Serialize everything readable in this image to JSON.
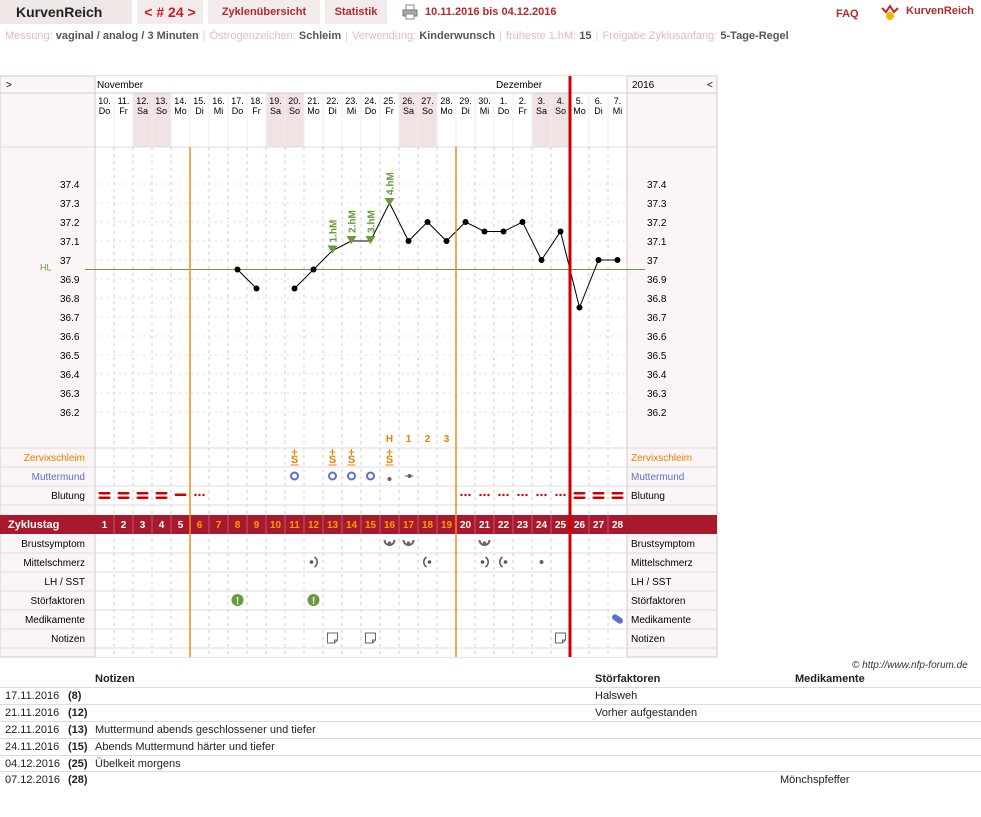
{
  "header": {
    "app_title": "KurvenReich",
    "cycle_nav": "< # 24 >",
    "overview_label": "Zyklenübersicht",
    "stats_label": "Statistik",
    "date_range": "10.11.2016 bis 04.12.2016",
    "faq_label": "FAQ",
    "logo_text": "KurvenReich"
  },
  "meta": [
    {
      "label": "Messung:",
      "value": "vaginal / analog / 3 Minuten"
    },
    {
      "label": "Östrogenzeichen:",
      "value": "Schleim"
    },
    {
      "label": "Verwendung:",
      "value": "Kinderwunsch"
    },
    {
      "label": "früheste 1.hM:",
      "value": "15"
    },
    {
      "label": "Freigabe Zyklusanfang:",
      "value": "5-Tage-Regel"
    }
  ],
  "chart_data": {
    "type": "line",
    "months": [
      {
        "name": "November",
        "start_index": 0
      },
      {
        "name": "Dezember",
        "start_index": 21
      }
    ],
    "year": "2016",
    "nav_left": ">",
    "nav_right": "<",
    "days": [
      "10.",
      "11.",
      "12.",
      "13.",
      "14.",
      "15.",
      "16.",
      "17.",
      "18.",
      "19.",
      "20.",
      "21.",
      "22.",
      "23.",
      "24.",
      "25.",
      "26.",
      "27.",
      "28.",
      "29.",
      "30.",
      "1.",
      "2.",
      "3.",
      "4.",
      "5.",
      "6.",
      "7."
    ],
    "weekdays": [
      "Do",
      "Fr",
      "Sa",
      "So",
      "Mo",
      "Di",
      "Mi",
      "Do",
      "Fr",
      "Sa",
      "So",
      "Mo",
      "Di",
      "Mi",
      "Do",
      "Fr",
      "Sa",
      "So",
      "Mo",
      "Di",
      "Mi",
      "Do",
      "Fr",
      "Sa",
      "So",
      "Mo",
      "Di",
      "Mi"
    ],
    "weekend": [
      false,
      false,
      true,
      true,
      false,
      false,
      false,
      false,
      false,
      true,
      true,
      false,
      false,
      false,
      false,
      false,
      true,
      true,
      false,
      false,
      false,
      false,
      false,
      true,
      true,
      false,
      false,
      false
    ],
    "cycle_days": [
      "1",
      "2",
      "3",
      "4",
      "5",
      "6",
      "7",
      "8",
      "9",
      "10",
      "11",
      "12",
      "13",
      "14",
      "15",
      "16",
      "17",
      "18",
      "19",
      "20",
      "21",
      "22",
      "23",
      "24",
      "25",
      "26",
      "27",
      "28"
    ],
    "cycle_day_status": [
      "bleed",
      "bleed",
      "bleed",
      "bleed",
      "bleed",
      "free",
      "free",
      "free",
      "free",
      "free",
      "free",
      "free",
      "free",
      "free",
      "free",
      "free",
      "free",
      "free",
      "free",
      "infertile",
      "infertile",
      "infertile",
      "infertile",
      "infertile",
      "infertile",
      "bleed",
      "bleed",
      "bleed"
    ],
    "ylabel_ticks": [
      "37.4",
      "37.3",
      "37.2",
      "37.1",
      "37",
      "36.9",
      "36.8",
      "36.7",
      "36.6",
      "36.5",
      "36.4",
      "36.3",
      "36.2"
    ],
    "ylim": [
      36.2,
      37.4
    ],
    "temperatures": [
      null,
      null,
      null,
      null,
      null,
      null,
      null,
      36.95,
      36.85,
      null,
      36.85,
      36.95,
      37.05,
      37.1,
      37.1,
      37.3,
      37.1,
      37.2,
      37.1,
      37.2,
      37.15,
      37.15,
      37.2,
      37.0,
      37.15,
      36.75,
      37.0,
      37.0
    ],
    "high_marks": [
      {
        "index": 12,
        "label": "1.hM"
      },
      {
        "index": 13,
        "label": "2.hM"
      },
      {
        "index": 14,
        "label": "3.hM"
      },
      {
        "index": 15,
        "label": "4.hM"
      }
    ],
    "hilfslinie": {
      "value": 36.95,
      "label": "HL"
    },
    "peak_labels": [
      {
        "index": 15,
        "label": "H"
      },
      {
        "index": 16,
        "label": "1"
      },
      {
        "index": 17,
        "label": "2"
      },
      {
        "index": 18,
        "label": "3"
      }
    ],
    "row_labels": {
      "cervix": "Zervixschleim",
      "mouth": "Muttermund",
      "bleeding": "Blutung",
      "cycleday": "Zyklustag",
      "breast": "Brustsymptom",
      "mittel": "Mittelschmerz",
      "lh": "LH / SST",
      "stoer": "Störfaktoren",
      "medi": "Medikamente",
      "notes": "Notizen"
    },
    "cervix_marks": [
      10,
      12,
      13,
      15
    ],
    "mouth_marks": [
      {
        "index": 10,
        "type": "open"
      },
      {
        "index": 12,
        "type": "open"
      },
      {
        "index": 13,
        "type": "open"
      },
      {
        "index": 14,
        "type": "open"
      },
      {
        "index": 15,
        "type": "closed"
      },
      {
        "index": 16,
        "type": "dot-line"
      }
    ],
    "bleeding": [
      "strong",
      "strong",
      "strong",
      "strong",
      "medium",
      "spot",
      "",
      "",
      "",
      "",
      "",
      "",
      "",
      "",
      "",
      "",
      "",
      "",
      "",
      "spot",
      "spot",
      "spot",
      "spot",
      "spot",
      "spot",
      "strong",
      "strong",
      "strong"
    ],
    "breast_marks": [
      15,
      16,
      20
    ],
    "mittel_marks": [
      {
        "index": 11,
        "type": "right"
      },
      {
        "index": 17,
        "type": "left"
      },
      {
        "index": 20,
        "type": "right"
      },
      {
        "index": 21,
        "type": "left"
      },
      {
        "index": 23,
        "type": "dot"
      }
    ],
    "stoer_marks": [
      7,
      11
    ],
    "medi_marks": [
      27
    ],
    "note_marks": [
      12,
      14,
      24
    ],
    "vlines": [
      {
        "after_index": 4,
        "color": "#f08a1e"
      },
      {
        "after_index": 18,
        "color": "#f08a1e"
      },
      {
        "after_index": 24,
        "color": "#cc0000"
      }
    ],
    "colors": {
      "orange": "#ee7d00",
      "red": "#cc0000",
      "green": "#6a9a3c",
      "blue": "#5b6fd0",
      "weekend": "#f1e2e4",
      "band": "#a8192e"
    }
  },
  "notes_table": {
    "headers": {
      "notes": "Notizen",
      "stoer": "Störfaktoren",
      "medi": "Medikamente"
    },
    "copyright": "© http://www.nfp-forum.de",
    "rows": [
      {
        "date": "17.11.2016",
        "day": "(8)",
        "note": "",
        "stoer": "Halsweh",
        "medi": ""
      },
      {
        "date": "21.11.2016",
        "day": "(12)",
        "note": "",
        "stoer": "Vorher aufgestanden",
        "medi": ""
      },
      {
        "date": "22.11.2016",
        "day": "(13)",
        "note": "Muttermund abends geschlossener und tiefer",
        "stoer": "",
        "medi": ""
      },
      {
        "date": "24.11.2016",
        "day": "(15)",
        "note": "Abends Muttermund härter und tiefer",
        "stoer": "",
        "medi": ""
      },
      {
        "date": "04.12.2016",
        "day": "(25)",
        "note": "Übelkeit morgens",
        "stoer": "",
        "medi": ""
      },
      {
        "date": "07.12.2016",
        "day": "(28)",
        "note": "",
        "stoer": "",
        "medi": "Mönchspfeffer"
      }
    ]
  }
}
